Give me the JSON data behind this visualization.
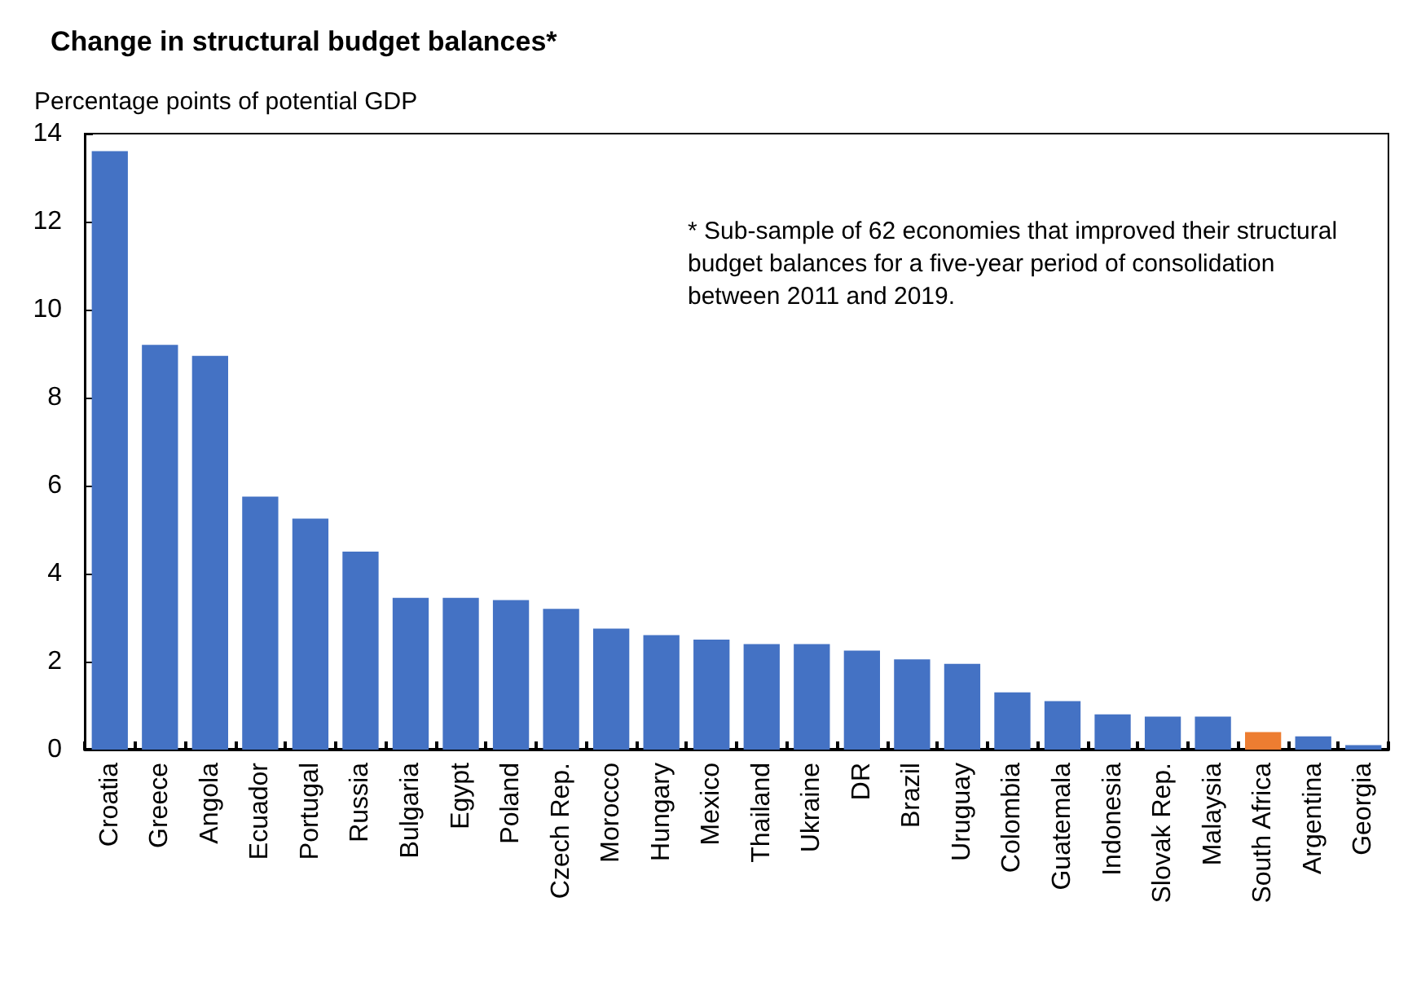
{
  "chart_data": {
    "type": "bar",
    "title": "Change in structural budget balances*",
    "ylabel": "Percentage points of potential GDP",
    "categories": [
      "Croatia",
      "Greece",
      "Angola",
      "Ecuador",
      "Portugal",
      "Russia",
      "Bulgaria",
      "Egypt",
      "Poland",
      "Czech Rep.",
      "Morocco",
      "Hungary",
      "Mexico",
      "Thailand",
      "Ukraine",
      "DR",
      "Brazil",
      "Uruguay",
      "Colombia",
      "Guatemala",
      "Indonesia",
      "Slovak Rep.",
      "Malaysia",
      "South Africa",
      "Argentina",
      "Georgia"
    ],
    "values": [
      13.6,
      9.2,
      8.95,
      5.75,
      5.25,
      4.5,
      3.45,
      3.45,
      3.4,
      3.2,
      2.75,
      2.6,
      2.5,
      2.4,
      2.4,
      2.25,
      2.05,
      1.95,
      1.3,
      1.1,
      0.8,
      0.75,
      0.75,
      0.4,
      0.3,
      0.1
    ],
    "colors": [
      "#4472c4",
      "#4472c4",
      "#4472c4",
      "#4472c4",
      "#4472c4",
      "#4472c4",
      "#4472c4",
      "#4472c4",
      "#4472c4",
      "#4472c4",
      "#4472c4",
      "#4472c4",
      "#4472c4",
      "#4472c4",
      "#4472c4",
      "#4472c4",
      "#4472c4",
      "#4472c4",
      "#4472c4",
      "#4472c4",
      "#4472c4",
      "#4472c4",
      "#4472c4",
      "#ed7d31",
      "#4472c4",
      "#4472c4"
    ],
    "ylim": [
      0,
      14
    ],
    "yticks": [
      0,
      2,
      4,
      6,
      8,
      10,
      12,
      14
    ],
    "grid": false,
    "annotations": [
      "* Sub-sample of 62 economies that improved their structural budget balances for a five-year period of consolidation between 2011 and 2019."
    ]
  }
}
